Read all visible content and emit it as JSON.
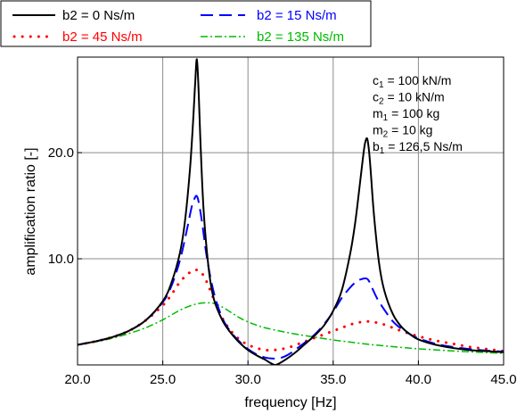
{
  "chart_data": {
    "type": "line",
    "xlabel": "frequency [Hz]",
    "ylabel": "amplification ratio [-]",
    "xlim": [
      20,
      45
    ],
    "ylim": [
      0,
      29
    ],
    "xticks": [
      20,
      25,
      30,
      35,
      40,
      45
    ],
    "xtick_labels": [
      "20.0",
      "25.0",
      "30.0",
      "35.0",
      "40.0",
      "45.0"
    ],
    "yticks": [
      10,
      20
    ],
    "ytick_labels": [
      "10.0",
      "20.0"
    ],
    "grid": true,
    "legend_position": "top, outside plot",
    "series": [
      {
        "name": "b2 = 0 Ns/m",
        "color": "#000000",
        "dash": "solid",
        "x": [
          20,
          21,
          22,
          23,
          24,
          25,
          25.5,
          26,
          26.3,
          26.6,
          26.8,
          26.9,
          27.0,
          27.1,
          27.2,
          27.4,
          27.7,
          28,
          28.5,
          29,
          29.5,
          30,
          30.5,
          31,
          31.3,
          31.6,
          31.9,
          32.3,
          32.8,
          33.3,
          34,
          34.5,
          35,
          35.5,
          36,
          36.3,
          36.6,
          36.8,
          36.9,
          37.0,
          37.1,
          37.2,
          37.4,
          37.7,
          38,
          38.5,
          39,
          39.5,
          40,
          41,
          42,
          43,
          44,
          45
        ],
        "y": [
          1.9,
          2.2,
          2.6,
          3.2,
          4.2,
          6.0,
          7.7,
          10.5,
          13.5,
          18.5,
          23.5,
          26.5,
          28.8,
          26.0,
          21.5,
          14.5,
          9.0,
          6.2,
          4.2,
          3.0,
          2.1,
          1.4,
          0.9,
          0.5,
          0.2,
          0.0,
          0.2,
          0.6,
          1.2,
          1.9,
          2.9,
          3.8,
          5.1,
          7.0,
          10.5,
          13.5,
          17.5,
          20.2,
          21.1,
          21.3,
          20.2,
          18.3,
          14.0,
          9.5,
          7.0,
          4.8,
          3.6,
          2.9,
          2.4,
          1.9,
          1.6,
          1.4,
          1.3,
          1.2
        ]
      },
      {
        "name": "b2 = 15 Ns/m",
        "color": "#0000ff",
        "dash": "dashed",
        "x": [
          20,
          21,
          22,
          23,
          24,
          25,
          25.5,
          26,
          26.4,
          26.7,
          26.9,
          27.0,
          27.1,
          27.3,
          27.6,
          28,
          28.5,
          29,
          29.5,
          30,
          30.5,
          31,
          31.5,
          32,
          32.5,
          33,
          33.5,
          34,
          34.5,
          35,
          35.5,
          36,
          36.4,
          36.7,
          36.9,
          37.0,
          37.1,
          37.3,
          37.6,
          38,
          38.5,
          39,
          39.5,
          40,
          41,
          42,
          43,
          44,
          45
        ],
        "y": [
          1.9,
          2.2,
          2.6,
          3.2,
          4.2,
          5.9,
          7.4,
          9.8,
          12.6,
          14.9,
          15.8,
          15.9,
          15.4,
          13.5,
          10.0,
          6.8,
          4.4,
          3.1,
          2.2,
          1.5,
          1.0,
          0.7,
          0.6,
          0.7,
          1.1,
          1.7,
          2.3,
          3.0,
          3.9,
          5.0,
          6.3,
          7.3,
          7.9,
          8.1,
          8.15,
          8.1,
          7.9,
          7.2,
          6.2,
          5.2,
          4.1,
          3.4,
          2.9,
          2.5,
          2.0,
          1.7,
          1.5,
          1.35,
          1.25
        ]
      },
      {
        "name": "b2 = 45 Ns/m",
        "color": "#ff0000",
        "dash": "dotted",
        "x": [
          20,
          21,
          22,
          23,
          24,
          25,
          25.5,
          26,
          26.5,
          26.8,
          27.0,
          27.2,
          27.5,
          28,
          28.5,
          29,
          29.5,
          30,
          30.5,
          31,
          31.5,
          32,
          32.5,
          33,
          33.5,
          34,
          34.5,
          35,
          35.5,
          36,
          36.5,
          37,
          37.5,
          38,
          38.5,
          39,
          40,
          41,
          42,
          43,
          44,
          45
        ],
        "y": [
          1.9,
          2.2,
          2.6,
          3.2,
          4.2,
          5.6,
          6.6,
          7.8,
          8.6,
          8.9,
          8.95,
          8.8,
          8.1,
          6.2,
          4.4,
          3.2,
          2.4,
          1.9,
          1.6,
          1.4,
          1.4,
          1.5,
          1.7,
          2.0,
          2.3,
          2.6,
          2.9,
          3.2,
          3.5,
          3.8,
          4.0,
          4.1,
          4.0,
          3.8,
          3.5,
          3.2,
          2.7,
          2.3,
          2.0,
          1.7,
          1.5,
          1.3
        ]
      },
      {
        "name": "b2 = 135 Ns/m",
        "color": "#00bb00",
        "dash": "dashdot",
        "x": [
          20,
          21,
          22,
          23,
          24,
          25,
          25.5,
          26,
          26.5,
          27,
          27.5,
          28,
          28.5,
          29,
          29.5,
          30,
          30.5,
          31,
          32,
          33,
          34,
          35,
          36,
          37,
          38,
          39,
          40,
          41,
          42,
          43,
          44,
          45
        ],
        "y": [
          1.9,
          2.15,
          2.5,
          2.95,
          3.5,
          4.25,
          4.7,
          5.15,
          5.5,
          5.75,
          5.85,
          5.8,
          5.45,
          4.95,
          4.45,
          4.05,
          3.75,
          3.5,
          3.15,
          2.85,
          2.6,
          2.35,
          2.15,
          1.95,
          1.8,
          1.65,
          1.52,
          1.42,
          1.32,
          1.24,
          1.16,
          1.1
        ]
      }
    ]
  },
  "annotations": {
    "lines": [
      {
        "base": "c",
        "sub": "1",
        "rest": " = 100 kN/m"
      },
      {
        "base": "c",
        "sub": "2",
        "rest": " = 10 kN/m"
      },
      {
        "base": "m",
        "sub": "1",
        "rest": " = 100 kg"
      },
      {
        "base": "m",
        "sub": "2",
        "rest": " = 10 kg"
      },
      {
        "base": "b",
        "sub": "1",
        "rest": " = 126,5 Ns/m"
      }
    ]
  }
}
